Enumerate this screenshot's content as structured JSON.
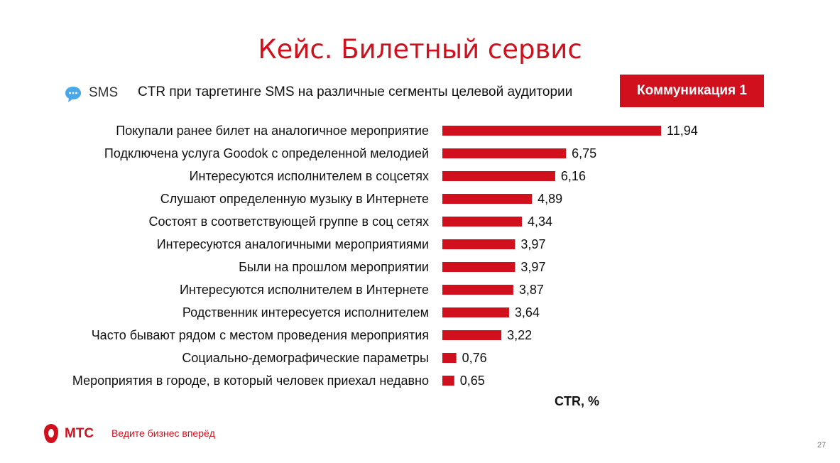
{
  "slide": {
    "title": "Кейс. Билетный сервис",
    "sms_label": "SMS",
    "subtitle": "CTR при таргетинге SMS на различные сегменты целевой аудитории",
    "badge": "Коммуникация 1",
    "logo_text": "МТС",
    "slogan": "Ведите бизнес вперёд",
    "page_number": "27"
  },
  "colors": {
    "accent": "#d0101d",
    "sms_icon": "#4aa8e8"
  },
  "icons": {
    "sms": "chat-bubble-icon",
    "logo": "mts-egg-logo-icon"
  },
  "chart_data": {
    "type": "bar",
    "orientation": "horizontal",
    "categories": [
      "Покупали ранее  билет на аналогичное мероприятие",
      "Подключена услуга Goodok с определенной мелодией",
      "Интересуются исполнителем в соцсетях",
      "Слушают определенную музыку в Интернете",
      "Состоят в соответствующей группе в соц сетях",
      "Интересуются аналогичными мероприятиями",
      "Были на прошлом мероприятии",
      "Интересуются исполнителем в Интернете",
      "Родственник интересуется исполнителем",
      "Часто бывают рядом с местом проведения мероприятия",
      "Социально-демографические параметры",
      "Мероприятия в городе, в который человек приехал недавно"
    ],
    "values": [
      11.94,
      6.75,
      6.16,
      4.89,
      4.34,
      3.97,
      3.97,
      3.87,
      3.64,
      3.22,
      0.76,
      0.65
    ],
    "value_labels": [
      "11,94",
      "6,75",
      "6,16",
      "4,89",
      "4,34",
      "3,97",
      "3,97",
      "3,87",
      "3,64",
      "3,22",
      "0,76",
      "0,65"
    ],
    "xlabel": "CTR, %",
    "ylabel": "",
    "grid": false,
    "legend": "none"
  }
}
